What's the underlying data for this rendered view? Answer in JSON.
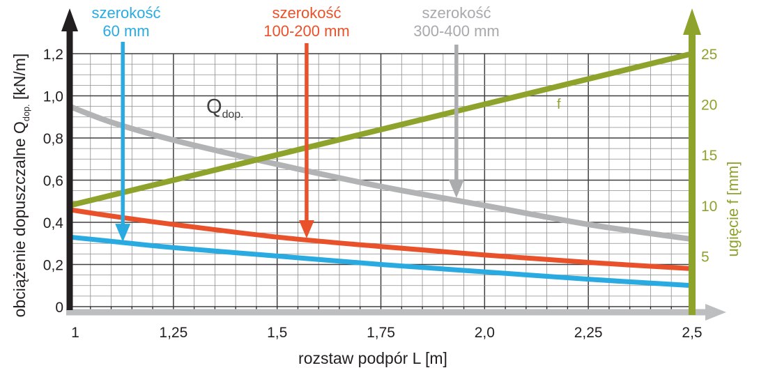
{
  "labels": {
    "qdop_main": "Q",
    "qdop_sub": "dop.",
    "f": "f",
    "left_title_prefix": "obciążenie dopuszczalne Q",
    "left_title_sub": "dop.",
    "left_title_suffix": " [kN/m]"
  },
  "legend": {
    "w60": {
      "line1": "szerokość",
      "line2": "60 mm",
      "color": "#29abe2"
    },
    "w100_200": {
      "line1": "szerokość",
      "line2": "100-200 mm",
      "color": "#e8512a"
    },
    "w300_400": {
      "line1": "szerokość",
      "line2": "300-400 mm",
      "color": "#a7a9ac"
    }
  },
  "chart_data": {
    "type": "line",
    "title": "",
    "grid": "on",
    "x_axis": {
      "label": "rozstaw podpór L [m]",
      "min": 1,
      "max": 2.5,
      "ticks": [
        1,
        1.25,
        1.5,
        1.75,
        2.0,
        2.25,
        2.5
      ],
      "tick_labels": [
        "1",
        "1,25",
        "1,5",
        "1,75",
        "2,0",
        "2,25",
        "2,5"
      ],
      "minor_grid_step": 0.05,
      "major_grid_step": 0.25,
      "axis_color": "#bcbec0"
    },
    "y_axis_left": {
      "label": "obciążenie dopuszczalne Qdop. [kN/m]",
      "min": 0,
      "max": 1.2,
      "ticks": [
        0,
        0.2,
        0.4,
        0.6,
        0.8,
        1.0,
        1.2
      ],
      "tick_labels": [
        "0",
        "0,2",
        "0,4",
        "0,6",
        "0,8",
        "1,0",
        "1,2"
      ],
      "minor_grid_step": 0.05,
      "major_grid_step": 0.2,
      "axis_color": "#231f20"
    },
    "y_axis_right": {
      "label": "ugięcie f [mm]",
      "min": 0,
      "max": 25,
      "ticks": [
        5,
        10,
        15,
        20,
        25
      ],
      "tick_labels": [
        "5",
        "10",
        "15",
        "20",
        "25"
      ],
      "color": "#8da32b",
      "scale_note": "5 mm aligns with 0,2 kN/m"
    },
    "series": [
      {
        "id": "w300-400",
        "name": "szerokość 300-400 mm",
        "axis": "left",
        "color": "#b1b3b5",
        "x": [
          1,
          1.1,
          1.25,
          1.5,
          1.75,
          2.0,
          2.25,
          2.5
        ],
        "y": [
          0.95,
          0.875,
          0.79,
          0.675,
          0.57,
          0.48,
          0.39,
          0.32
        ]
      },
      {
        "id": "f",
        "name": "f (ugięcie)",
        "axis": "right",
        "color": "#8da32b",
        "x": [
          1,
          2.5
        ],
        "y": [
          10,
          25
        ]
      },
      {
        "id": "w100-200",
        "name": "szerokość 100-200 mm",
        "axis": "left",
        "color": "#e8512a",
        "x": [
          1,
          1.1,
          1.25,
          1.5,
          1.75,
          2.0,
          2.25,
          2.5
        ],
        "y": [
          0.46,
          0.43,
          0.39,
          0.33,
          0.285,
          0.245,
          0.21,
          0.18
        ]
      },
      {
        "id": "w60",
        "name": "szerokość 60 mm",
        "axis": "left",
        "color": "#29abe2",
        "x": [
          1,
          1.1,
          1.25,
          1.5,
          1.75,
          2.0,
          2.25,
          2.5
        ],
        "y": [
          0.33,
          0.31,
          0.28,
          0.24,
          0.2,
          0.165,
          0.13,
          0.1
        ]
      }
    ],
    "annotation_arrows": [
      {
        "target": "w60",
        "color": "#29abe2",
        "x_value": 1.128,
        "from_q": 1.256,
        "tip_q": 0.307
      },
      {
        "target": "w100-200",
        "color": "#e8512a",
        "x_value": 1.571,
        "from_q": 1.25,
        "tip_q": 0.324
      },
      {
        "target": "w300-400",
        "color": "#aaacae",
        "x_value": 1.932,
        "from_q": 1.243,
        "tip_q": 0.516
      }
    ]
  }
}
